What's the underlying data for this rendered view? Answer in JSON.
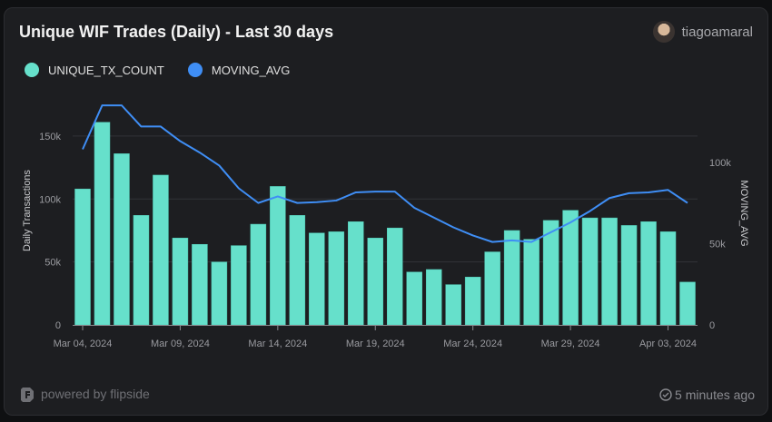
{
  "header": {
    "title": "Unique WIF Trades (Daily) - Last 30 days",
    "username": "tiagoamaral"
  },
  "footer": {
    "powered": "powered by flipside",
    "updated": "5 minutes ago"
  },
  "colors": {
    "bars": "#66e0cb",
    "line": "#3f8ef5"
  },
  "chart_data": {
    "type": "bar+line",
    "title": "Unique WIF Trades (Daily) - Last 30 days",
    "ylabel": "Daily Transactions",
    "y2label": "MOVING_AVG",
    "legend_position": "top-left",
    "grid": true,
    "x_ticks": [
      "Mar 04, 2024",
      "Mar 09, 2024",
      "Mar 14, 2024",
      "Mar 19, 2024",
      "Mar 24, 2024",
      "Mar 29, 2024",
      "Apr 03, 2024"
    ],
    "y_ticks": [
      "0",
      "50k",
      "100k",
      "150k"
    ],
    "y2_ticks": [
      "0",
      "50k",
      "100k"
    ],
    "ylim": [
      0,
      186000
    ],
    "y2lim": [
      0,
      144000
    ],
    "x": [
      "2024-03-04",
      "2024-03-05",
      "2024-03-06",
      "2024-03-07",
      "2024-03-08",
      "2024-03-09",
      "2024-03-10",
      "2024-03-11",
      "2024-03-12",
      "2024-03-13",
      "2024-03-14",
      "2024-03-15",
      "2024-03-16",
      "2024-03-17",
      "2024-03-18",
      "2024-03-19",
      "2024-03-20",
      "2024-03-21",
      "2024-03-22",
      "2024-03-23",
      "2024-03-24",
      "2024-03-25",
      "2024-03-26",
      "2024-03-27",
      "2024-03-28",
      "2024-03-29",
      "2024-03-30",
      "2024-03-31",
      "2024-04-01",
      "2024-04-02",
      "2024-04-03",
      "2024-04-04"
    ],
    "series": [
      {
        "name": "UNIQUE_TX_COUNT",
        "type": "bar",
        "axis": "left",
        "values": [
          108000,
          161000,
          136000,
          87000,
          119000,
          69000,
          64000,
          50000,
          63000,
          80000,
          110000,
          87000,
          73000,
          74000,
          82000,
          69000,
          77000,
          42000,
          44000,
          32000,
          38000,
          58000,
          75000,
          68000,
          83000,
          91000,
          85000,
          85000,
          79000,
          82000,
          74000,
          34000
        ]
      },
      {
        "name": "MOVING_AVG",
        "type": "line",
        "axis": "right",
        "values": [
          108000,
          135000,
          135000,
          122000,
          122000,
          113000,
          106000,
          98000,
          84000,
          75000,
          79000,
          75000,
          75500,
          76500,
          81500,
          82000,
          82000,
          72000,
          66000,
          60000,
          55000,
          51000,
          52000,
          51000,
          57000,
          63000,
          70000,
          78000,
          81000,
          81500,
          83000,
          75000
        ]
      }
    ]
  }
}
